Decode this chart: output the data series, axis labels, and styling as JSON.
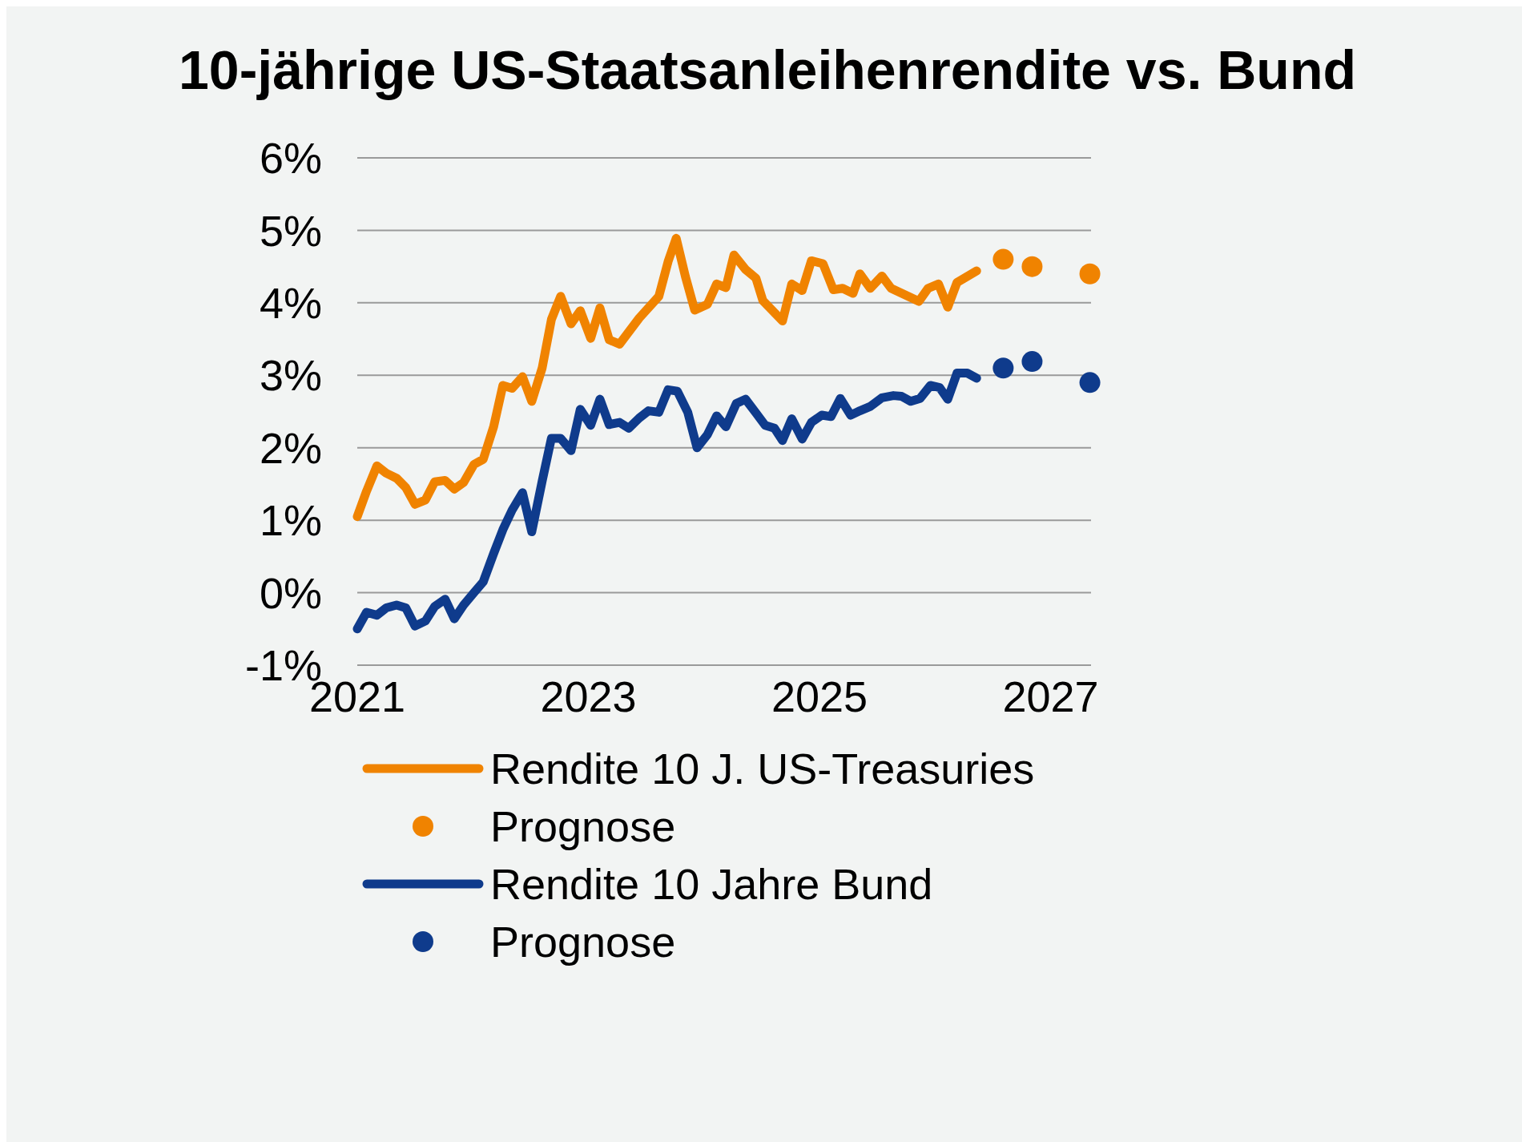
{
  "chart_data": {
    "type": "line",
    "title": "10-jährige US-Staatsanleihenrendite vs. Bund",
    "xlim": [
      2021,
      2027.35
    ],
    "xticks": [
      2021,
      2023,
      2025,
      2027
    ],
    "ylim": [
      -1,
      6
    ],
    "yticks": [
      {
        "value": -1,
        "label": "-1%"
      },
      {
        "value": 0,
        "label": "0%"
      },
      {
        "value": 1,
        "label": "1%"
      },
      {
        "value": 2,
        "label": "2%"
      },
      {
        "value": 3,
        "label": "3%"
      },
      {
        "value": 4,
        "label": "4%"
      },
      {
        "value": 5,
        "label": "5%"
      },
      {
        "value": 6,
        "label": "6%"
      }
    ],
    "grid": "y",
    "legend": "bottom",
    "series": [
      {
        "name": "Rendite 10 J. US-Treasuries",
        "color": "#f08300",
        "x": [
          2021.0,
          2021.08,
          2021.17,
          2021.25,
          2021.34,
          2021.42,
          2021.5,
          2021.59,
          2021.67,
          2021.76,
          2021.84,
          2021.92,
          2022.01,
          2022.09,
          2022.18,
          2022.26,
          2022.34,
          2022.43,
          2022.51,
          2022.6,
          2022.68,
          2022.76,
          2022.85,
          2022.93,
          2023.02,
          2023.1,
          2023.18,
          2023.27,
          2023.44,
          2023.61,
          2023.69,
          2023.76,
          2023.84,
          2023.92,
          2024.03,
          2024.11,
          2024.19,
          2024.26,
          2024.36,
          2024.45,
          2024.51,
          2024.68,
          2024.76,
          2024.85,
          2024.93,
          2025.03,
          2025.12,
          2025.2,
          2025.29,
          2025.35,
          2025.44,
          2025.54,
          2025.62,
          2025.86,
          2025.94,
          2026.03,
          2026.11,
          2026.19,
          2026.36
        ],
        "values": [
          1.05,
          1.4,
          1.75,
          1.65,
          1.58,
          1.45,
          1.22,
          1.28,
          1.53,
          1.55,
          1.43,
          1.52,
          1.77,
          1.84,
          2.29,
          2.86,
          2.82,
          2.98,
          2.64,
          3.1,
          3.77,
          4.09,
          3.71,
          3.89,
          3.51,
          3.93,
          3.49,
          3.43,
          3.79,
          4.09,
          4.57,
          4.89,
          4.36,
          3.9,
          3.98,
          4.26,
          4.21,
          4.66,
          4.46,
          4.34,
          4.03,
          3.75,
          4.26,
          4.17,
          4.58,
          4.54,
          4.18,
          4.2,
          4.13,
          4.4,
          4.2,
          4.37,
          4.2,
          4.02,
          4.2,
          4.26,
          3.94,
          4.28,
          4.44
        ]
      },
      {
        "name": "Prognose",
        "type": "scatter",
        "color": "#f08300",
        "x": [
          2026.59,
          2026.84,
          2027.34
        ],
        "values": [
          4.6,
          4.5,
          4.4
        ]
      },
      {
        "name": "Rendite 10 Jahre Bund",
        "color": "#0f3b8c",
        "x": [
          2021.0,
          2021.08,
          2021.17,
          2021.25,
          2021.34,
          2021.42,
          2021.5,
          2021.59,
          2021.67,
          2021.76,
          2021.84,
          2021.92,
          2022.01,
          2022.09,
          2022.18,
          2022.26,
          2022.34,
          2022.43,
          2022.51,
          2022.6,
          2022.68,
          2022.76,
          2022.85,
          2022.93,
          2023.02,
          2023.1,
          2023.18,
          2023.27,
          2023.35,
          2023.44,
          2023.52,
          2023.61,
          2023.69,
          2023.77,
          2023.86,
          2023.94,
          2024.03,
          2024.11,
          2024.19,
          2024.28,
          2024.36,
          2024.45,
          2024.53,
          2024.61,
          2024.68,
          2024.76,
          2024.85,
          2024.93,
          2025.02,
          2025.1,
          2025.18,
          2025.27,
          2025.35,
          2025.44,
          2025.54,
          2025.64,
          2025.71,
          2025.79,
          2025.87,
          2025.96,
          2026.04,
          2026.11,
          2026.19,
          2026.28,
          2026.36
        ],
        "values": [
          -0.5,
          -0.27,
          -0.31,
          -0.21,
          -0.17,
          -0.21,
          -0.46,
          -0.39,
          -0.19,
          -0.09,
          -0.36,
          -0.17,
          0.0,
          0.15,
          0.54,
          0.87,
          1.14,
          1.38,
          0.84,
          1.54,
          2.13,
          2.13,
          1.96,
          2.53,
          2.31,
          2.67,
          2.32,
          2.35,
          2.27,
          2.41,
          2.51,
          2.49,
          2.8,
          2.78,
          2.49,
          2.0,
          2.18,
          2.44,
          2.29,
          2.61,
          2.67,
          2.48,
          2.31,
          2.27,
          2.1,
          2.4,
          2.12,
          2.35,
          2.45,
          2.43,
          2.68,
          2.45,
          2.51,
          2.57,
          2.69,
          2.72,
          2.71,
          2.64,
          2.68,
          2.86,
          2.83,
          2.67,
          3.03,
          3.03,
          2.96
        ]
      },
      {
        "name": "Prognose",
        "type": "scatter",
        "color": "#0f3b8c",
        "x": [
          2026.59,
          2026.84,
          2027.34
        ],
        "values": [
          3.1,
          3.19,
          2.9
        ]
      }
    ]
  }
}
